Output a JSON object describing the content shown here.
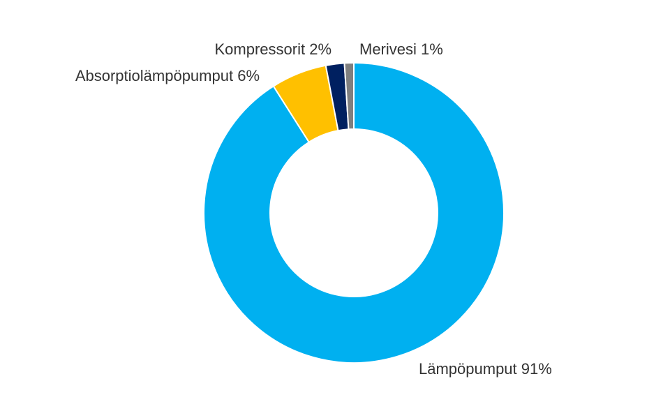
{
  "chart_data": {
    "type": "donut",
    "categories": [
      "Lämpöpumput",
      "Absorptiolämpöpumput",
      "Kompressorit",
      "Merivesi"
    ],
    "values": [
      91,
      6,
      2,
      1
    ],
    "value_labels": [
      "91%",
      "6%",
      "2%",
      "1%"
    ],
    "colors": [
      "#00b0f0",
      "#ffc000",
      "#002060",
      "#7f7f7f"
    ]
  }
}
